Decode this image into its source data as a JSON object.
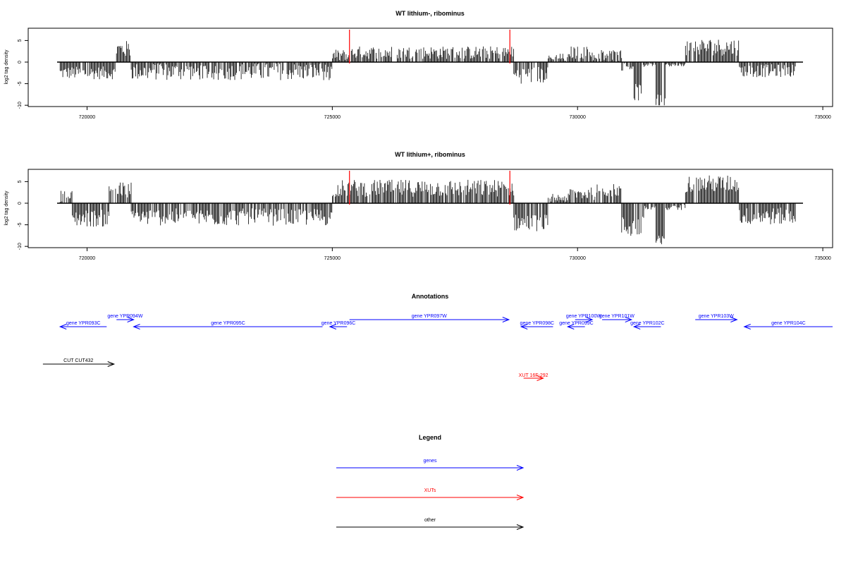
{
  "colors": {
    "gene": "#0000ff",
    "xut": "#ff0000",
    "other": "#000000",
    "bar": "#000000",
    "marker": "#ff0000"
  },
  "chart_data": [
    {
      "type": "bar",
      "title": "WT lithium-, ribominus",
      "ylabel": "log2 tag density",
      "xlim": [
        718800,
        735200
      ],
      "ylim": [
        -10,
        8
      ],
      "yticks": [
        -10,
        -5,
        0,
        5
      ],
      "ytick_labels": [
        "-10",
        "-5",
        "0",
        "5"
      ],
      "xticks": [
        720000,
        725000,
        730000,
        735000
      ],
      "xtick_labels": [
        "720000",
        "725000",
        "730000",
        "735000"
      ],
      "markers": [
        725350,
        728620
      ],
      "segments": [
        {
          "start": 719450,
          "end": 720600,
          "level": -2.5,
          "var": 1.5
        },
        {
          "start": 720600,
          "end": 720900,
          "level": 3.0,
          "var": 2.0
        },
        {
          "start": 720900,
          "end": 725000,
          "level": -2.2,
          "var": 2.0
        },
        {
          "start": 725000,
          "end": 725350,
          "level": 1.5,
          "var": 1.5
        },
        {
          "start": 725350,
          "end": 728700,
          "level": 2.2,
          "var": 1.5
        },
        {
          "start": 728700,
          "end": 729400,
          "level": -3.0,
          "var": 2.0
        },
        {
          "start": 729400,
          "end": 729850,
          "level": 1.0,
          "var": 1.0
        },
        {
          "start": 729850,
          "end": 730300,
          "level": 2.2,
          "var": 1.5
        },
        {
          "start": 730300,
          "end": 730900,
          "level": 1.5,
          "var": 1.5
        },
        {
          "start": 730900,
          "end": 731150,
          "level": -1.0,
          "var": 1.0
        },
        {
          "start": 731150,
          "end": 731300,
          "level": -7.0,
          "var": 2.0
        },
        {
          "start": 731300,
          "end": 731600,
          "level": -0.5,
          "var": 0.5
        },
        {
          "start": 731600,
          "end": 731800,
          "level": -9.0,
          "var": 1.5
        },
        {
          "start": 731800,
          "end": 732200,
          "level": -0.5,
          "var": 0.5
        },
        {
          "start": 732200,
          "end": 733300,
          "level": 3.5,
          "var": 2.0
        },
        {
          "start": 733300,
          "end": 734450,
          "level": -2.0,
          "var": 1.5
        }
      ]
    },
    {
      "type": "bar",
      "title": "WT lithium+, ribominus",
      "ylabel": "log2 tag density",
      "xlim": [
        718800,
        735200
      ],
      "ylim": [
        -10,
        8
      ],
      "yticks": [
        -10,
        -5,
        0,
        5
      ],
      "ytick_labels": [
        "-10",
        "-5",
        "0",
        "5"
      ],
      "xticks": [
        720000,
        725000,
        730000,
        735000
      ],
      "xtick_labels": [
        "720000",
        "725000",
        "730000",
        "735000"
      ],
      "markers": [
        725350,
        728620
      ],
      "segments": [
        {
          "start": 719450,
          "end": 719700,
          "level": 1.5,
          "var": 1.5
        },
        {
          "start": 719700,
          "end": 720450,
          "level": -3.5,
          "var": 2.0
        },
        {
          "start": 720450,
          "end": 720900,
          "level": 3.0,
          "var": 2.0
        },
        {
          "start": 720900,
          "end": 725000,
          "level": -3.2,
          "var": 2.0
        },
        {
          "start": 725000,
          "end": 728700,
          "level": 3.5,
          "var": 2.0
        },
        {
          "start": 728700,
          "end": 729400,
          "level": -4.5,
          "var": 2.0
        },
        {
          "start": 729400,
          "end": 729850,
          "level": 1.2,
          "var": 1.0
        },
        {
          "start": 729850,
          "end": 730400,
          "level": 2.2,
          "var": 1.5
        },
        {
          "start": 730400,
          "end": 730900,
          "level": 3.0,
          "var": 1.5
        },
        {
          "start": 730900,
          "end": 731350,
          "level": -5.5,
          "var": 2.5
        },
        {
          "start": 731350,
          "end": 731600,
          "level": -1.0,
          "var": 1.0
        },
        {
          "start": 731600,
          "end": 731800,
          "level": -9.0,
          "var": 1.5
        },
        {
          "start": 731800,
          "end": 732200,
          "level": -1.0,
          "var": 1.0
        },
        {
          "start": 732200,
          "end": 733300,
          "level": 4.5,
          "var": 2.0
        },
        {
          "start": 733300,
          "end": 734450,
          "level": -3.0,
          "var": 2.0
        }
      ]
    }
  ],
  "annotations": {
    "title": "Annotations",
    "genes": [
      {
        "label": "gene YPR093C",
        "start": 720400,
        "end": 719450,
        "row": 1
      },
      {
        "label": "gene YPR094W",
        "start": 720600,
        "end": 720950,
        "row": 0
      },
      {
        "label": "gene YPR095C",
        "start": 724800,
        "end": 720950,
        "row": 1
      },
      {
        "label": "gene YPR096C",
        "start": 725300,
        "end": 724950,
        "row": 1
      },
      {
        "label": "gene YPR097W",
        "start": 725350,
        "end": 728600,
        "row": 0
      },
      {
        "label": "gene YPR098C",
        "start": 729500,
        "end": 728850,
        "row": 1
      },
      {
        "label": "gene YPR099C",
        "start": 730150,
        "end": 729800,
        "row": 1
      },
      {
        "label": "gene YPR100W",
        "start": 729950,
        "end": 730300,
        "row": 0
      },
      {
        "label": "gene YPR101W",
        "start": 730500,
        "end": 731100,
        "row": 0
      },
      {
        "label": "gene YPR102C",
        "start": 731700,
        "end": 731150,
        "row": 1
      },
      {
        "label": "gene YPR103W",
        "start": 732400,
        "end": 733250,
        "row": 0
      },
      {
        "label": "gene YPR104C",
        "start": 735200,
        "end": 733400,
        "row": 1
      }
    ],
    "other": [
      {
        "label": "CUT CUT432",
        "start": 719100,
        "end": 720550
      }
    ],
    "xuts": [
      {
        "label": "XUT 16F-292",
        "start": 728900,
        "end": 729300
      }
    ]
  },
  "legend": {
    "title": "Legend",
    "items": [
      {
        "label": "genes",
        "kind": "gene"
      },
      {
        "label": "XUTs",
        "kind": "xut"
      },
      {
        "label": "other",
        "kind": "other"
      }
    ]
  }
}
